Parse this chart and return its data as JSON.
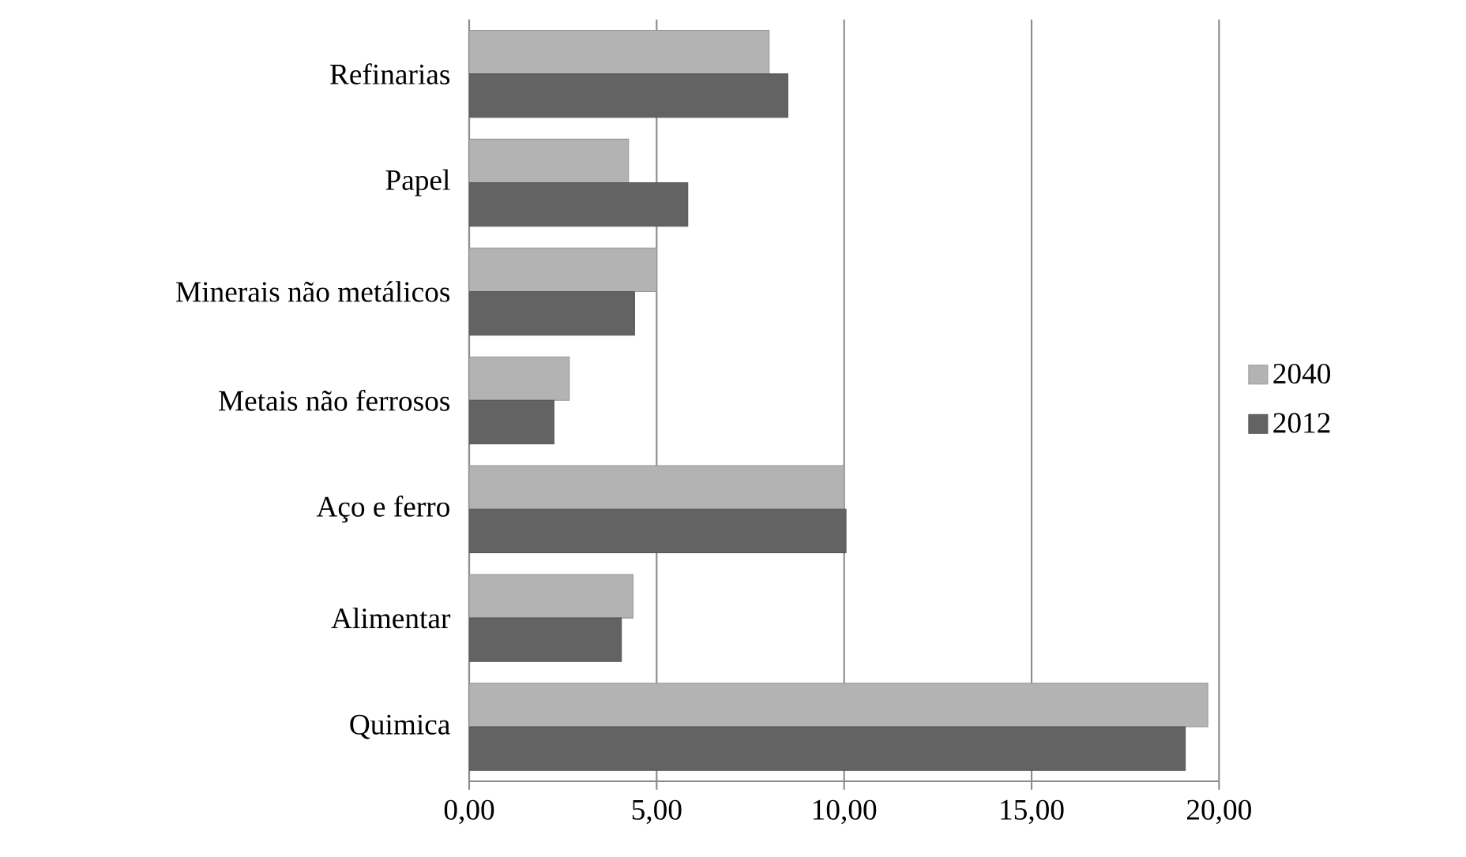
{
  "chart_data": {
    "type": "bar",
    "orientation": "horizontal",
    "categories": [
      "Refinarias",
      "Papel",
      "Minerais não metálicos",
      "Metais não ferrosos",
      "Aço e ferro",
      "Alimentar",
      "Quimica"
    ],
    "series": [
      {
        "name": "2040",
        "color": "#b3b3b3",
        "values": [
          8.0,
          4.25,
          5.0,
          2.67,
          10.0,
          4.37,
          19.7
        ]
      },
      {
        "name": "2012",
        "color": "#636363",
        "values": [
          8.5,
          5.83,
          4.41,
          2.26,
          10.05,
          4.06,
          19.1
        ]
      }
    ],
    "xlim": [
      0,
      20
    ],
    "xticks": [
      {
        "value": 0,
        "label": "0,00"
      },
      {
        "value": 5,
        "label": "5,00"
      },
      {
        "value": 10,
        "label": "10,00"
      },
      {
        "value": 15,
        "label": "15,00"
      },
      {
        "value": 20,
        "label": "20,00"
      }
    ],
    "grid": "x",
    "legend": "right"
  }
}
